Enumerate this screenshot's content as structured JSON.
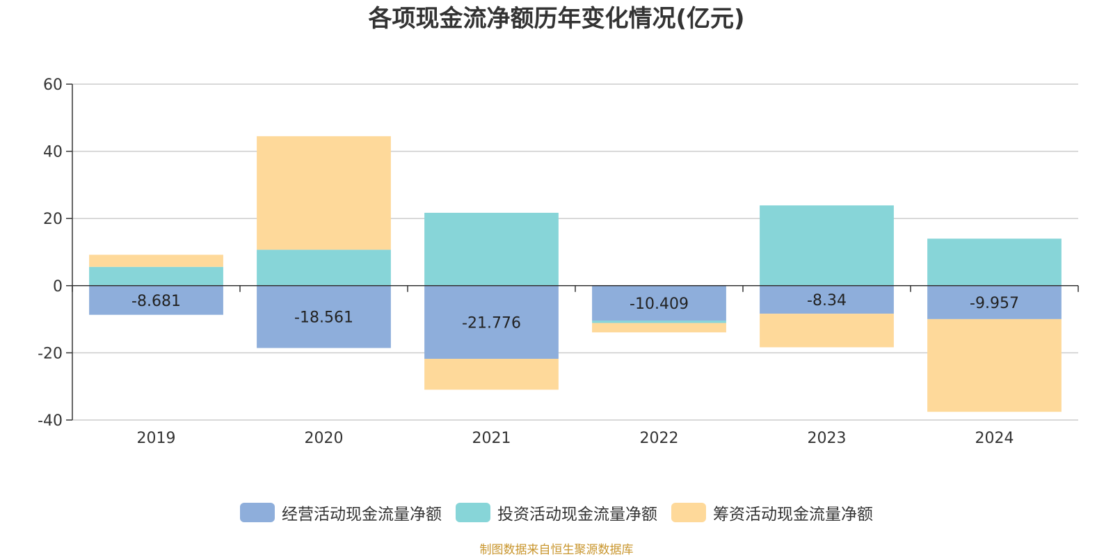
{
  "chart_data": {
    "type": "bar",
    "stacked": true,
    "title": "各项现金流净额历年变化情况(亿元)",
    "categories": [
      "2019",
      "2020",
      "2021",
      "2022",
      "2023",
      "2024"
    ],
    "series": [
      {
        "name": "经营活动现金流量净额",
        "color": "#8eaedb",
        "values": [
          -8.681,
          -18.561,
          -21.776,
          -10.409,
          -8.34,
          -9.957
        ],
        "data_labels": [
          "-8.681",
          "-18.561",
          "-21.776",
          "-10.409",
          "-8.34",
          "-9.957"
        ]
      },
      {
        "name": "投资活动现金流量净额",
        "color": "#87d5d8",
        "values": [
          5.6,
          10.7,
          21.7,
          -0.7,
          23.9,
          14.0
        ]
      },
      {
        "name": "筹资活动现金流量净额",
        "color": "#fed99a",
        "values": [
          3.6,
          33.8,
          -9.2,
          -2.8,
          -10.0,
          -27.6
        ]
      }
    ],
    "ylim": [
      -40,
      60
    ],
    "yticks": [
      60,
      40,
      20,
      0,
      -20,
      -40
    ],
    "ytick_labels": [
      "60",
      "40",
      "20",
      "0",
      "-20",
      "-40"
    ],
    "grid": true,
    "legend_position": "bottom",
    "xlabel": "",
    "ylabel": ""
  },
  "source": "制图数据来自恒生聚源数据库"
}
